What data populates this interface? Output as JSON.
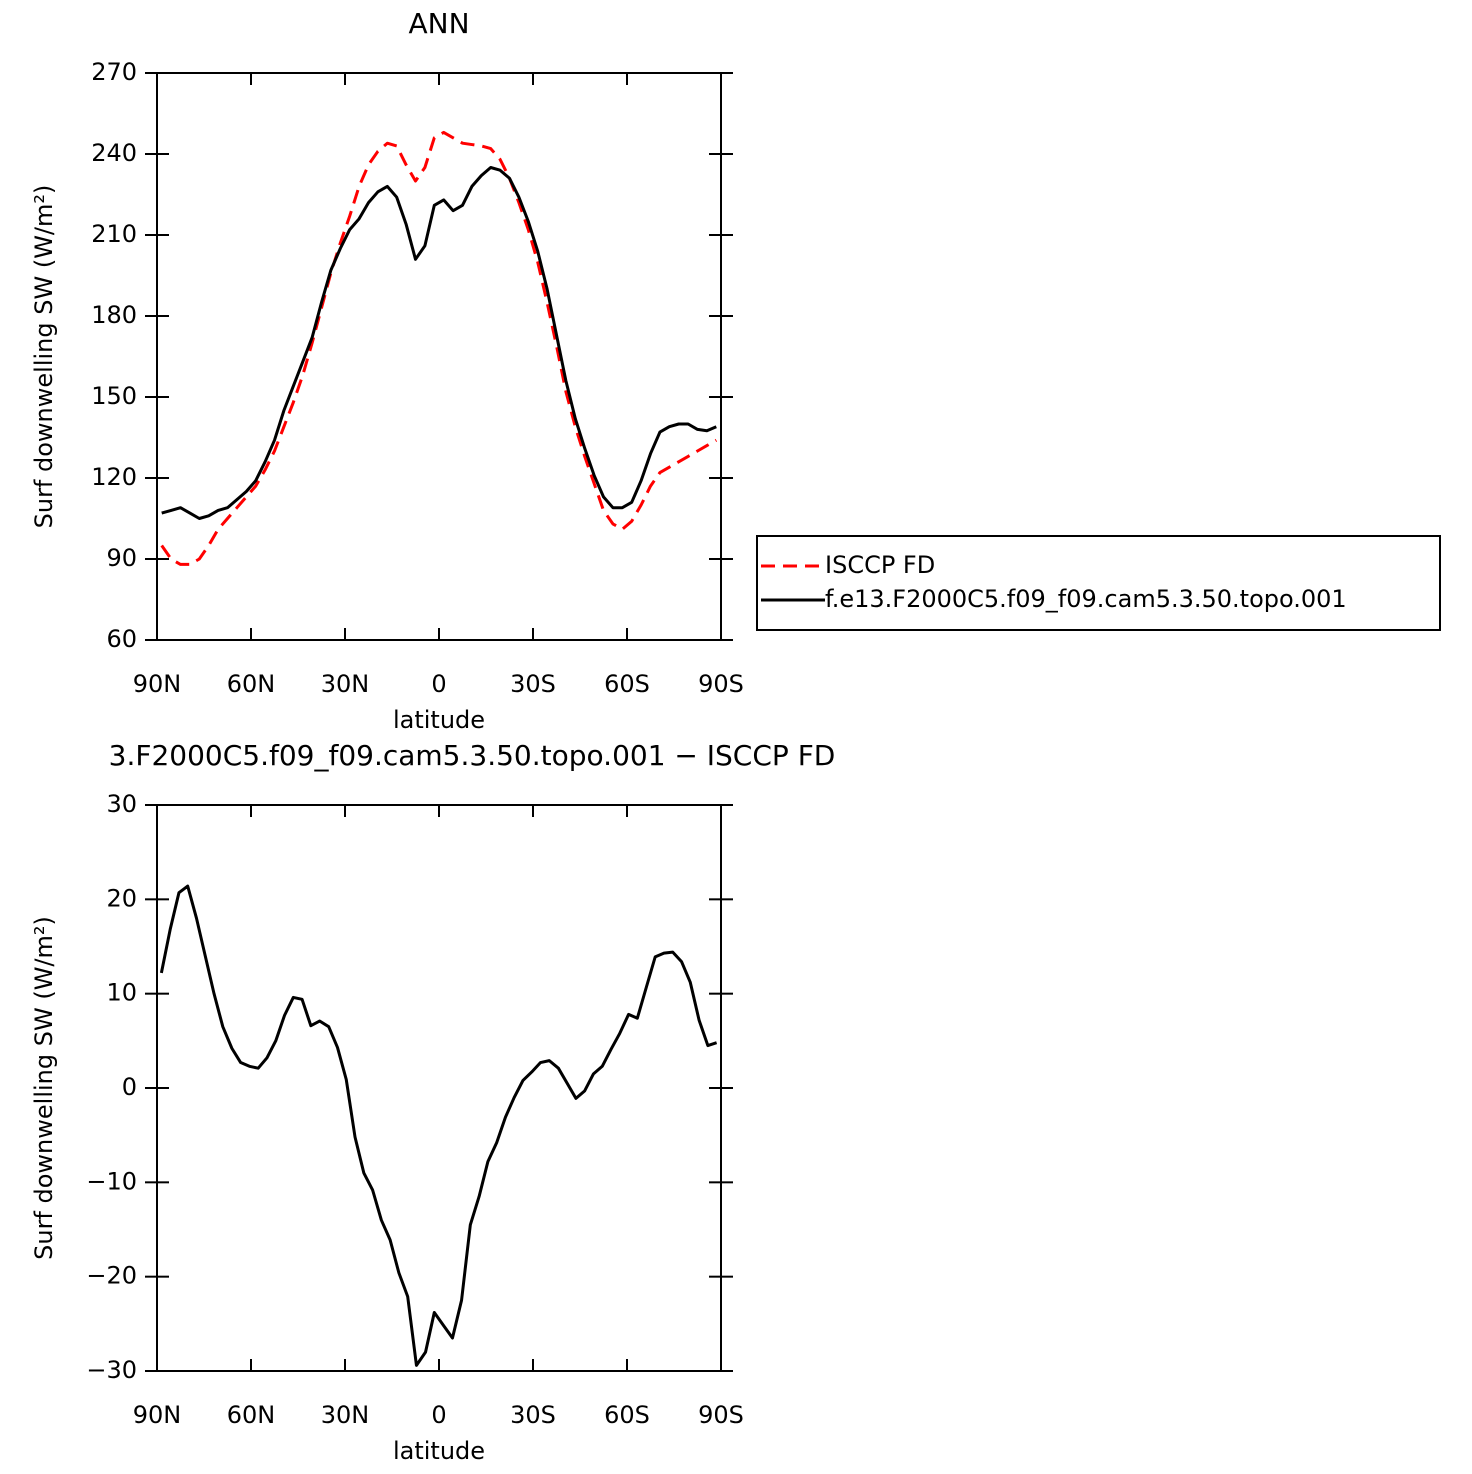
{
  "chart_data": [
    {
      "type": "line",
      "title": "ANN",
      "xlabel": "latitude",
      "ylabel": "Surf downwelling SW (W/m²)",
      "x": [
        88.5,
        85.5,
        82.5,
        79.5,
        76.5,
        73.5,
        70.5,
        67.5,
        64.5,
        61.5,
        58.5,
        55.5,
        52.5,
        49.5,
        46.5,
        43.5,
        40.5,
        37.5,
        34.5,
        31.5,
        28.5,
        25.5,
        22.5,
        19.5,
        16.5,
        13.5,
        10.5,
        7.5,
        4.5,
        1.5,
        -1.5,
        -4.5,
        -7.5,
        -10.5,
        -13.5,
        -16.5,
        -19.5,
        -22.5,
        -25.5,
        -28.5,
        -31.5,
        -34.5,
        -37.5,
        -40.5,
        -43.5,
        -46.5,
        -49.5,
        -52.5,
        -55.5,
        -58.5,
        -61.5,
        -64.5,
        -67.5,
        -70.5,
        -73.5,
        -76.5,
        -79.5,
        -82.5,
        -85.5,
        -88.5
      ],
      "series": [
        {
          "name": "ISCCP FD",
          "color": "#ff0000",
          "line_style": "dashed",
          "values": [
            95,
            90,
            88,
            88,
            90,
            95,
            101,
            105,
            109,
            113,
            117,
            123,
            130,
            139,
            148,
            158,
            170,
            183,
            196,
            207,
            217,
            228,
            236,
            241,
            244,
            243,
            236,
            230,
            235,
            246,
            248,
            246,
            244,
            243.5,
            243,
            242,
            238,
            231,
            222,
            212,
            200,
            185,
            169,
            152,
            139,
            128,
            118,
            108,
            103,
            101,
            104,
            110,
            117,
            122,
            124,
            126,
            128,
            130,
            132,
            134
          ]
        },
        {
          "name": "f.e13.F2000C5.f09_f09.cam5.3.50.topo.001",
          "color": "#000000",
          "line_style": "solid",
          "values": [
            107,
            108,
            109,
            107,
            105,
            106,
            108,
            109,
            112,
            115,
            119,
            126,
            134,
            145,
            154,
            163,
            172,
            185,
            197,
            205,
            212,
            216,
            222,
            226,
            228,
            224,
            214,
            201,
            206,
            221,
            223,
            219,
            221,
            228,
            232,
            235,
            234,
            231,
            224,
            215,
            204,
            190,
            173,
            156,
            142,
            131,
            121,
            113,
            109,
            109,
            111,
            119,
            129,
            137,
            139,
            140,
            140,
            138,
            137.5,
            139
          ]
        }
      ],
      "xlim": [
        90,
        -90
      ],
      "xticks": [
        {
          "value": 90,
          "label": "90N"
        },
        {
          "value": 60,
          "label": "60N"
        },
        {
          "value": 30,
          "label": "30N"
        },
        0,
        {
          "value": -30,
          "label": "30S"
        },
        {
          "value": -60,
          "label": "60S"
        },
        {
          "value": -90,
          "label": "90S"
        }
      ],
      "ylim": [
        60,
        270
      ],
      "yticks": [
        60,
        90,
        120,
        150,
        180,
        210,
        240,
        270
      ],
      "legend": "right"
    },
    {
      "type": "line",
      "title": "3.F2000C5.f09_f09.cam5.3.50.topo.001 − ISCCP FD",
      "xlabel": "latitude",
      "ylabel": "Surf downwelling SW (W/m²)",
      "x": [
        88.6,
        85.8,
        83.0,
        80.2,
        77.4,
        74.6,
        71.8,
        69.0,
        66.1,
        63.3,
        60.5,
        57.7,
        54.9,
        52.1,
        49.3,
        46.5,
        43.7,
        40.9,
        38.1,
        35.2,
        32.4,
        29.6,
        26.8,
        24.0,
        21.2,
        18.4,
        15.6,
        12.8,
        10.0,
        7.2,
        4.3,
        1.5,
        -1.5,
        -4.3,
        -7.2,
        -10.0,
        -12.8,
        -15.6,
        -18.4,
        -21.2,
        -24.0,
        -26.8,
        -29.6,
        -32.4,
        -35.2,
        -38.1,
        -40.9,
        -43.7,
        -46.5,
        -49.3,
        -52.1,
        -54.9,
        -57.7,
        -60.5,
        -63.3,
        -66.1,
        -69.0,
        -71.8,
        -74.6,
        -77.4,
        -80.2,
        -83.0,
        -85.8,
        -88.6
      ],
      "values": [
        12.2,
        16.8,
        20.7,
        21.4,
        18,
        14,
        10,
        6.5,
        4.2,
        2.7,
        2.3,
        2.1,
        3.2,
        5,
        7.7,
        9.6,
        9.4,
        6.6,
        7.1,
        6.5,
        4.3,
        0.9,
        -5.2,
        -9,
        -10.8,
        -14,
        -16.1,
        -19.6,
        -22.1,
        -29.4,
        -28,
        -23.8,
        -25.2,
        -26.5,
        -22.5,
        -14.5,
        -11.5,
        -7.8,
        -5.8,
        -3.1,
        -1,
        0.8,
        1.7,
        2.7,
        2.9,
        2.1,
        0.5,
        -1.1,
        -0.3,
        1.5,
        2.3,
        4.1,
        5.8,
        7.8,
        7.4,
        10.6,
        13.9,
        14.3,
        14.4,
        13.4,
        11.2,
        7.2,
        4.5,
        4.8
      ],
      "color": "#000000",
      "xlim": [
        90,
        -90
      ],
      "xticks": [
        {
          "value": 90,
          "label": "90N"
        },
        {
          "value": 60,
          "label": "60N"
        },
        {
          "value": 30,
          "label": "30N"
        },
        0,
        {
          "value": -30,
          "label": "30S"
        },
        {
          "value": -60,
          "label": "60S"
        },
        {
          "value": -90,
          "label": "90S"
        }
      ],
      "ylim": [
        -30,
        30
      ],
      "yticks": [
        {
          "value": -30,
          "label": "−30"
        },
        {
          "value": -20,
          "label": "−20"
        },
        {
          "value": -10,
          "label": "−10"
        },
        0,
        10,
        20,
        30
      ]
    }
  ]
}
